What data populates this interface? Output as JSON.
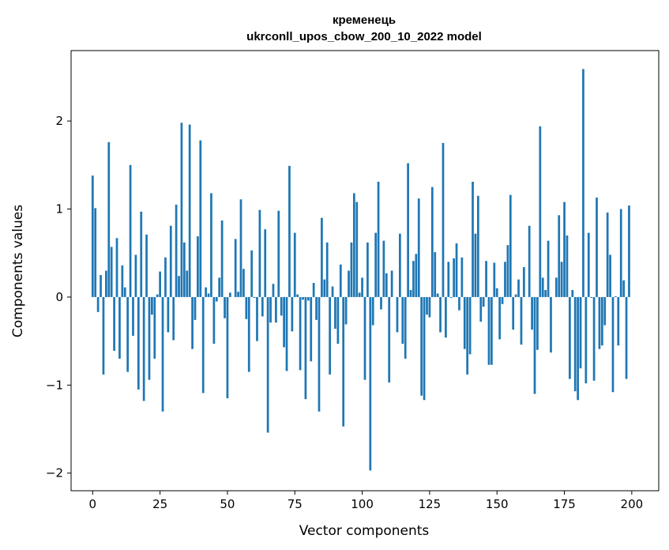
{
  "chart_data": {
    "type": "bar",
    "title": "кременець",
    "subtitle": "ukrconll_upos_cbow_200_10_2022 model",
    "xlabel": "Vector components",
    "ylabel": "Components values",
    "xlim": [
      -8,
      210
    ],
    "ylim": [
      -2.2,
      2.8
    ],
    "xticks": [
      0,
      25,
      50,
      75,
      100,
      125,
      150,
      175,
      200
    ],
    "yticks": [
      -2,
      -1,
      0,
      1,
      2
    ],
    "bar_color": "#1f77b4",
    "grid": false,
    "legend": "none",
    "x": [
      0,
      1,
      2,
      3,
      4,
      5,
      6,
      7,
      8,
      9,
      10,
      11,
      12,
      13,
      14,
      15,
      16,
      17,
      18,
      19,
      20,
      21,
      22,
      23,
      24,
      25,
      26,
      27,
      28,
      29,
      30,
      31,
      32,
      33,
      34,
      35,
      36,
      37,
      38,
      39,
      40,
      41,
      42,
      43,
      44,
      45,
      46,
      47,
      48,
      49,
      50,
      51,
      52,
      53,
      54,
      55,
      56,
      57,
      58,
      59,
      60,
      61,
      62,
      63,
      64,
      65,
      66,
      67,
      68,
      69,
      70,
      71,
      72,
      73,
      74,
      75,
      76,
      77,
      78,
      79,
      80,
      81,
      82,
      83,
      84,
      85,
      86,
      87,
      88,
      89,
      90,
      91,
      92,
      93,
      94,
      95,
      96,
      97,
      98,
      99,
      100,
      101,
      102,
      103,
      104,
      105,
      106,
      107,
      108,
      109,
      110,
      111,
      112,
      113,
      114,
      115,
      116,
      117,
      118,
      119,
      120,
      121,
      122,
      123,
      124,
      125,
      126,
      127,
      128,
      129,
      130,
      131,
      132,
      133,
      134,
      135,
      136,
      137,
      138,
      139,
      140,
      141,
      142,
      143,
      144,
      145,
      146,
      147,
      148,
      149,
      150,
      151,
      152,
      153,
      154,
      155,
      156,
      157,
      158,
      159,
      160,
      161,
      162,
      163,
      164,
      165,
      166,
      167,
      168,
      169,
      170,
      171,
      172,
      173,
      174,
      175,
      176,
      177,
      178,
      179,
      180,
      181,
      182,
      183,
      184,
      185,
      186,
      187,
      188,
      189,
      190,
      191,
      192,
      193,
      194,
      195,
      196,
      197,
      198,
      199
    ],
    "values": [
      1.38,
      1.01,
      -0.17,
      0.25,
      -0.88,
      0.3,
      1.76,
      0.57,
      -0.61,
      0.67,
      -0.7,
      0.36,
      0.11,
      -0.85,
      1.5,
      -0.44,
      0.48,
      -1.05,
      0.97,
      -1.18,
      0.71,
      -0.94,
      -0.2,
      -0.7,
      0.03,
      0.29,
      -1.3,
      0.45,
      -0.4,
      0.81,
      -0.49,
      1.05,
      0.24,
      1.98,
      0.62,
      0.3,
      1.96,
      -0.59,
      -0.26,
      0.69,
      1.78,
      -1.09,
      0.11,
      0.04,
      1.18,
      -0.53,
      -0.05,
      0.22,
      0.87,
      -0.24,
      -1.15,
      0.05,
      0.0,
      0.66,
      0.06,
      1.11,
      0.32,
      -0.25,
      -0.85,
      0.53,
      -0.01,
      -0.5,
      0.99,
      -0.22,
      0.77,
      -1.54,
      -0.29,
      0.15,
      -0.29,
      0.98,
      -0.21,
      -0.57,
      -0.84,
      1.49,
      -0.39,
      0.73,
      0.03,
      -0.83,
      -0.03,
      -1.16,
      -0.04,
      -0.73,
      0.16,
      -0.26,
      -1.3,
      0.9,
      0.2,
      0.62,
      -0.88,
      0.12,
      -0.36,
      -0.53,
      0.37,
      -1.47,
      -0.31,
      0.3,
      0.62,
      1.18,
      1.08,
      0.05,
      0.22,
      -0.94,
      0.62,
      -1.97,
      -0.32,
      0.73,
      1.31,
      -0.14,
      0.64,
      0.27,
      -0.97,
      0.3,
      0.0,
      -0.4,
      0.72,
      -0.53,
      -0.7,
      1.52,
      0.08,
      0.41,
      0.49,
      1.12,
      -1.12,
      -1.17,
      -0.2,
      -0.23,
      1.25,
      0.51,
      0.04,
      -0.4,
      1.75,
      -0.46,
      0.4,
      -0.01,
      0.44,
      0.61,
      -0.15,
      0.45,
      -0.59,
      -0.88,
      -0.65,
      1.31,
      0.72,
      1.15,
      -0.28,
      -0.11,
      0.41,
      -0.77,
      -0.77,
      0.39,
      0.1,
      -0.48,
      -0.08,
      0.4,
      0.59,
      1.16,
      -0.37,
      0.03,
      0.2,
      -0.54,
      0.34,
      0.0,
      0.81,
      -0.37,
      -1.1,
      -0.6,
      1.94,
      0.22,
      0.08,
      0.64,
      -0.63,
      0.0,
      0.22,
      0.93,
      0.4,
      1.08,
      0.7,
      -0.93,
      0.08,
      -1.07,
      -1.17,
      -0.81,
      2.59,
      -0.98,
      0.73,
      -0.01,
      -0.95,
      1.13,
      -0.59,
      -0.55,
      -0.32,
      0.96,
      0.48,
      -1.08,
      0.01,
      -0.55,
      1.0,
      0.19,
      -0.93,
      1.04
    ]
  }
}
